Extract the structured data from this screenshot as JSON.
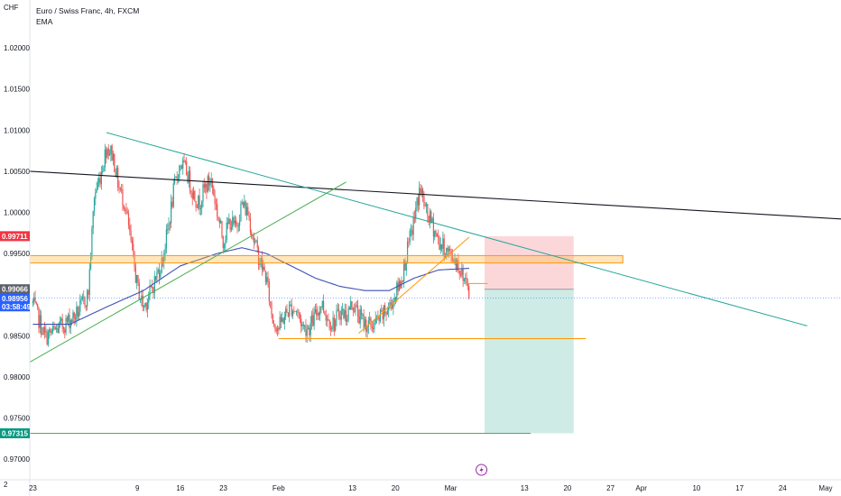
{
  "header": {
    "currency": "CHF",
    "symbol_title": "Euro / Swiss Franc, 4h, FXCM",
    "indicator": "EMA"
  },
  "bottom_badge": "2",
  "chart_data": {
    "type": "candlestick",
    "title": "Euro / Swiss Franc, 4h, FXCM",
    "y_axis": {
      "range": [
        0.9675,
        1.0245
      ],
      "ticks": [
        "1.02000",
        "1.01500",
        "1.01000",
        "1.00500",
        "1.00000",
        "0.99500",
        "0.98500",
        "0.98000",
        "0.97500",
        "0.97000"
      ]
    },
    "x_axis": {
      "ticks": [
        {
          "label": "23",
          "day": 0
        },
        {
          "label": "9",
          "day": 17
        },
        {
          "label": "16",
          "day": 24
        },
        {
          "label": "23",
          "day": 31
        },
        {
          "label": "Feb",
          "day": 40
        },
        {
          "label": "13",
          "day": 52
        },
        {
          "label": "20",
          "day": 59
        },
        {
          "label": "Mar",
          "day": 68
        },
        {
          "label": "13",
          "day": 80
        },
        {
          "label": "20",
          "day": 87
        },
        {
          "label": "27",
          "day": 94
        },
        {
          "label": "Apr",
          "day": 99
        },
        {
          "label": "10",
          "day": 108
        },
        {
          "label": "17",
          "day": 115
        },
        {
          "label": "24",
          "day": 122
        },
        {
          "label": "May",
          "day": 129
        }
      ],
      "range": [
        -0.5,
        131.5
      ]
    },
    "price_labels": [
      {
        "value": "0.99711",
        "y": 0.99711,
        "color": "#f23645"
      },
      {
        "value": "0.99066",
        "y": 0.99066,
        "color": "#5d606b"
      },
      {
        "value": "0.98956",
        "y": 0.98956,
        "color": "#2962ff",
        "sub": "03:58:49"
      },
      {
        "value": "0.97315",
        "y": 0.97315,
        "color": "#089981"
      }
    ],
    "anchors": [
      [
        0,
        0.989
      ],
      [
        2,
        0.9848
      ],
      [
        4,
        0.9858
      ],
      [
        7,
        0.9875
      ],
      [
        9,
        0.99
      ],
      [
        10,
        1.002
      ],
      [
        11,
        1.0045
      ],
      [
        12,
        1.008
      ],
      [
        13,
        1.007
      ],
      [
        14,
        1.003
      ],
      [
        15,
        1.001
      ],
      [
        16,
        0.996
      ],
      [
        17,
        0.991
      ],
      [
        18,
        0.9885
      ],
      [
        19,
        0.99
      ],
      [
        21,
        0.994
      ],
      [
        22,
        0.998
      ],
      [
        23,
        1.003
      ],
      [
        24,
        1.006
      ],
      [
        25,
        1.005
      ],
      [
        26,
        1.0025
      ],
      [
        27,
        1.001
      ],
      [
        28,
        1.003
      ],
      [
        29,
        1.004
      ],
      [
        30,
        1.0
      ],
      [
        31,
        0.9965
      ],
      [
        32,
        0.999
      ],
      [
        33,
        0.998
      ],
      [
        34,
        1.001
      ],
      [
        35,
        1.0
      ],
      [
        36,
        0.9965
      ],
      [
        37,
        0.994
      ],
      [
        38,
        0.992
      ],
      [
        39,
        0.987
      ],
      [
        40,
        0.986
      ],
      [
        41,
        0.9875
      ],
      [
        42,
        0.9885
      ],
      [
        43,
        0.988
      ],
      [
        44,
        0.986
      ],
      [
        45,
        0.986
      ],
      [
        46,
        0.9875
      ],
      [
        47,
        0.989
      ],
      [
        48,
        0.987
      ],
      [
        49,
        0.9865
      ],
      [
        50,
        0.988
      ],
      [
        51,
        0.9875
      ],
      [
        52,
        0.989
      ],
      [
        53,
        0.9875
      ],
      [
        54,
        0.9865
      ],
      [
        55,
        0.9862
      ],
      [
        56,
        0.9867
      ],
      [
        57,
        0.9875
      ],
      [
        58,
        0.9885
      ],
      [
        59,
        0.99
      ],
      [
        60,
        0.992
      ],
      [
        61,
        0.9955
      ],
      [
        62,
        0.999
      ],
      [
        63,
        1.003
      ],
      [
        64,
        1.0
      ],
      [
        65,
        0.9985
      ],
      [
        66,
        0.9965
      ],
      [
        67,
        0.9955
      ],
      [
        68,
        0.9948
      ],
      [
        69,
        0.994
      ],
      [
        70,
        0.992
      ],
      [
        71,
        0.992
      ]
    ],
    "ema_anchors": [
      [
        0,
        0.9864
      ],
      [
        6,
        0.9864
      ],
      [
        12,
        0.9885
      ],
      [
        18,
        0.9905
      ],
      [
        24,
        0.9935
      ],
      [
        30,
        0.995
      ],
      [
        34,
        0.9957
      ],
      [
        38,
        0.995
      ],
      [
        42,
        0.9935
      ],
      [
        46,
        0.992
      ],
      [
        50,
        0.991
      ],
      [
        54,
        0.9905
      ],
      [
        58,
        0.9905
      ],
      [
        62,
        0.992
      ],
      [
        66,
        0.993
      ],
      [
        71,
        0.9932
      ]
    ],
    "overlays": {
      "resistance_zone": {
        "y1": 0.99475,
        "y2": 0.99385,
        "x1": -0.5,
        "x2": 96
      },
      "horizontal_black": {
        "points": [
          [
            -0.5,
            1.005
          ],
          [
            131.5,
            0.9992
          ]
        ]
      },
      "descending_green": {
        "points": [
          [
            12,
            1.0097
          ],
          [
            126,
            0.9862
          ]
        ]
      },
      "ascending_green": {
        "points": [
          [
            -0.5,
            0.9818
          ],
          [
            51,
            1.0037
          ]
        ]
      },
      "support_low": {
        "y": 0.98465,
        "x1": 40,
        "x2": 90
      },
      "support_bottom": {
        "y": 0.97315,
        "x1": -0.5,
        "x2": 81
      },
      "entry_line": {
        "y": 0.99135,
        "x1": 70,
        "x2": 74
      },
      "rising_orange": {
        "points": [
          [
            53,
            0.9853
          ],
          [
            71,
            0.997
          ]
        ]
      },
      "short_position": {
        "x1": 73.5,
        "x2": 88,
        "entry": 0.99066,
        "stop": 0.99711,
        "target": 0.97315
      }
    }
  }
}
